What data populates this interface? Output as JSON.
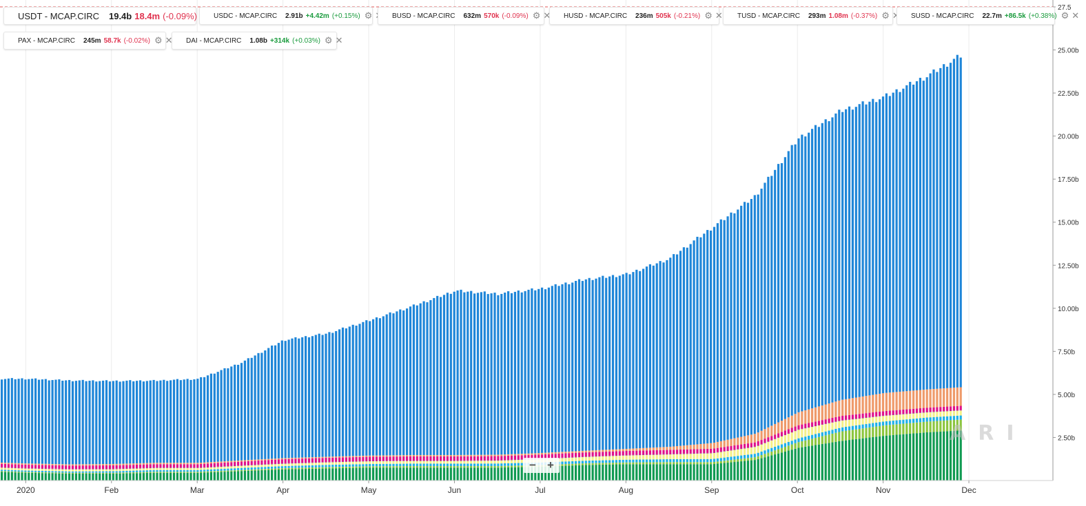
{
  "legend": [
    {
      "name": "USDT - MCAP.CIRC",
      "value": "19.4b",
      "change": "18.4m",
      "pct": "(-0.09%)",
      "dir": "neg",
      "color": "#1f86d8",
      "big": true
    },
    {
      "name": "USDC - MCAP.CIRC",
      "value": "2.91b",
      "change": "+4.42m",
      "pct": "(+0.15%)",
      "dir": "pos",
      "color": "#109a52",
      "big": false
    },
    {
      "name": "BUSD - MCAP.CIRC",
      "value": "632m",
      "change": "570k",
      "pct": "(-0.09%)",
      "dir": "neg",
      "color": "#8cc63f",
      "big": false
    },
    {
      "name": "HUSD - MCAP.CIRC",
      "value": "236m",
      "change": "505k",
      "pct": "(-0.21%)",
      "dir": "neg",
      "color": "#1fb0e8",
      "big": false
    },
    {
      "name": "TUSD - MCAP.CIRC",
      "value": "293m",
      "change": "1.08m",
      "pct": "(-0.37%)",
      "dir": "neg",
      "color": "#f5f08a",
      "big": false
    },
    {
      "name": "SUSD - MCAP.CIRC",
      "value": "22.7m",
      "change": "+86.5k",
      "pct": "(+0.38%)",
      "dir": "pos",
      "color": "#8e2a9c",
      "big": false
    },
    {
      "name": "PAX - MCAP.CIRC",
      "value": "245m",
      "change": "58.7k",
      "pct": "(-0.02%)",
      "dir": "neg",
      "color": "#e0128a",
      "big": false
    },
    {
      "name": "DAI - MCAP.CIRC",
      "value": "1.08b",
      "change": "+314k",
      "pct": "(+0.03%)",
      "dir": "pos",
      "color": "#ef9a6a",
      "big": false
    }
  ],
  "icons": {
    "settings": "gear-icon",
    "close": "close-icon"
  },
  "watermark": "ARI",
  "zoom": {
    "minus": "−",
    "plus": "+"
  },
  "chart_data": {
    "type": "bar",
    "stacked": true,
    "title": "",
    "xlabel": "",
    "ylabel": "",
    "ylim": [
      0,
      27.5
    ],
    "y_unit": "b",
    "y_ticks": [
      "2.50b",
      "5.00b",
      "7.50b",
      "10.00b",
      "12.50b",
      "15.00b",
      "17.50b",
      "20.00b",
      "22.50b",
      "25.00b",
      "27.5"
    ],
    "x_tick_labels": [
      "2020",
      "Feb",
      "Mar",
      "Apr",
      "May",
      "Jun",
      "Jul",
      "Aug",
      "Sep",
      "Oct",
      "Nov",
      "Dec"
    ],
    "x_tick_months": [
      0,
      1,
      2,
      3,
      4,
      5,
      6,
      7,
      8,
      9,
      10,
      11
    ],
    "x_range_months": [
      -0.3,
      11.98
    ],
    "stack_order": [
      "USDC",
      "BUSD",
      "HUSD",
      "TUSD",
      "SUSD",
      "PAX",
      "DAI",
      "USDT"
    ],
    "colors": {
      "USDT": "#1f86d8",
      "USDC": "#109a52",
      "BUSD": "#8cc63f",
      "HUSD": "#1fb0e8",
      "TUSD": "#f5f08a",
      "SUSD": "#8e2a9c",
      "PAX": "#e0128a",
      "DAI": "#ef9a6a"
    },
    "x_months": [
      -0.3,
      0,
      0.5,
      1,
      1.5,
      2,
      2.5,
      3,
      3.5,
      4,
      4.5,
      5,
      5.5,
      6,
      6.5,
      7,
      7.5,
      8,
      8.5,
      9,
      9.5,
      10,
      10.5,
      10.9
    ],
    "series": [
      {
        "name": "USDT",
        "values": [
          4.9,
          4.95,
          4.9,
          4.85,
          4.8,
          4.9,
          5.7,
          6.9,
          7.2,
          7.9,
          8.7,
          9.6,
          9.4,
          9.6,
          10.0,
          10.2,
          11.0,
          12.6,
          13.9,
          16.0,
          16.9,
          17.3,
          18.3,
          19.4
        ]
      },
      {
        "name": "USDC",
        "values": [
          0.5,
          0.45,
          0.4,
          0.4,
          0.45,
          0.45,
          0.55,
          0.65,
          0.7,
          0.75,
          0.75,
          0.75,
          0.75,
          0.8,
          0.9,
          0.95,
          0.95,
          0.95,
          1.2,
          1.9,
          2.3,
          2.6,
          2.8,
          2.91
        ]
      },
      {
        "name": "BUSD",
        "values": [
          0.05,
          0.05,
          0.05,
          0.05,
          0.06,
          0.06,
          0.06,
          0.07,
          0.08,
          0.08,
          0.09,
          0.09,
          0.09,
          0.1,
          0.1,
          0.1,
          0.12,
          0.12,
          0.16,
          0.33,
          0.55,
          0.6,
          0.62,
          0.632
        ]
      },
      {
        "name": "HUSD",
        "values": [
          0.08,
          0.08,
          0.08,
          0.09,
          0.1,
          0.1,
          0.12,
          0.12,
          0.13,
          0.13,
          0.14,
          0.14,
          0.15,
          0.15,
          0.15,
          0.16,
          0.17,
          0.18,
          0.2,
          0.22,
          0.23,
          0.23,
          0.24,
          0.236
        ]
      },
      {
        "name": "TUSD",
        "values": [
          0.12,
          0.12,
          0.12,
          0.12,
          0.12,
          0.12,
          0.13,
          0.14,
          0.15,
          0.16,
          0.16,
          0.16,
          0.17,
          0.2,
          0.22,
          0.25,
          0.28,
          0.34,
          0.4,
          0.5,
          0.4,
          0.33,
          0.3,
          0.293
        ]
      },
      {
        "name": "SUSD",
        "values": [
          0.02,
          0.02,
          0.02,
          0.02,
          0.02,
          0.02,
          0.02,
          0.02,
          0.02,
          0.02,
          0.02,
          0.02,
          0.02,
          0.02,
          0.02,
          0.02,
          0.02,
          0.02,
          0.02,
          0.02,
          0.02,
          0.02,
          0.02,
          0.0227
        ]
      },
      {
        "name": "PAX",
        "values": [
          0.2,
          0.2,
          0.2,
          0.2,
          0.2,
          0.2,
          0.22,
          0.24,
          0.24,
          0.24,
          0.24,
          0.24,
          0.24,
          0.24,
          0.24,
          0.24,
          0.24,
          0.24,
          0.24,
          0.24,
          0.25,
          0.25,
          0.25,
          0.245
        ]
      },
      {
        "name": "DAI",
        "values": [
          0.07,
          0.07,
          0.07,
          0.08,
          0.08,
          0.08,
          0.07,
          0.06,
          0.06,
          0.07,
          0.08,
          0.08,
          0.08,
          0.09,
          0.1,
          0.12,
          0.18,
          0.33,
          0.5,
          0.75,
          0.93,
          1.05,
          1.06,
          1.08
        ]
      }
    ]
  }
}
